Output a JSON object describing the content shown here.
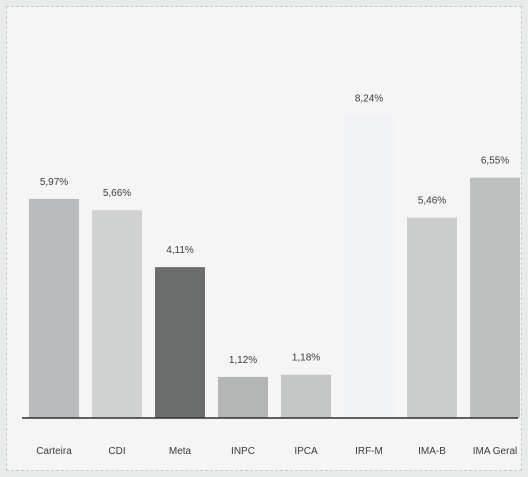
{
  "chart_data": {
    "type": "bar",
    "categories": [
      "Carteira",
      "CDI",
      "Meta",
      "INPC",
      "IPCA",
      "IRF-M",
      "IMA-B",
      "IMA Geral"
    ],
    "values": [
      5.97,
      5.66,
      4.11,
      1.12,
      1.18,
      8.24,
      5.46,
      6.55
    ],
    "value_labels": [
      "5,97%",
      "5,66%",
      "4,11%",
      "1,12%",
      "1,18%",
      "8,24%",
      "5,46%",
      "6,55%"
    ],
    "bar_colors": [
      "#b9bcbd",
      "#d1d3d3",
      "#6a6d6c",
      "#b3b6b5",
      "#c5c7c6",
      "#f2f3f6",
      "#cbcdcd",
      "#bdc0bf"
    ],
    "ylim": [
      0,
      8.5
    ],
    "grid": false,
    "title": "",
    "xlabel": "",
    "ylabel": ""
  }
}
